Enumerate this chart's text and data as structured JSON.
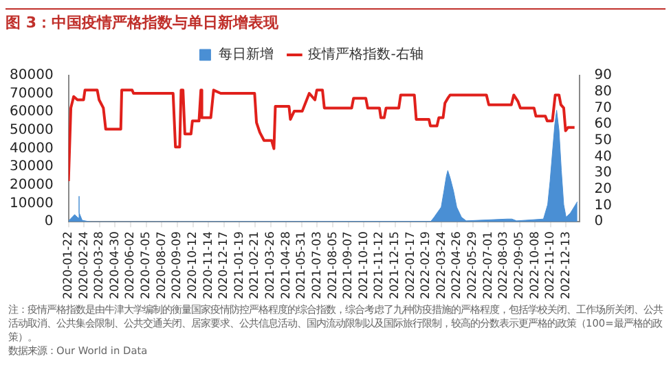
{
  "chart_data": {
    "type": "line",
    "title": "图 3：中国疫情严格指数与单日新增表现",
    "legend": "top",
    "grid": false,
    "xlim": [
      "2020-01-22",
      "2023-01-10"
    ],
    "xticks": [
      "2020-01-22",
      "2020-02-24",
      "2020-03-28",
      "2020-04-30",
      "2020-06-02",
      "2020-07-05",
      "2020-08-07",
      "2020-09-09",
      "2020-10-12",
      "2020-11-14",
      "2020-12-17",
      "2021-01-19",
      "2021-02-21",
      "2021-03-26",
      "2021-04-28",
      "2021-05-31",
      "2021-07-03",
      "2021-08-05",
      "2021-09-07",
      "2021-10-10",
      "2021-11-12",
      "2021-12-15",
      "2022-01-17",
      "2022-02-19",
      "2022-03-24",
      "2022-04-26",
      "2022-05-29",
      "2022-07-01",
      "2022-08-03",
      "2022-09-05",
      "2022-10-08",
      "2022-11-10",
      "2022-12-13"
    ],
    "ylim": [
      0,
      80000
    ],
    "yticks": [
      0,
      10000,
      20000,
      30000,
      40000,
      50000,
      60000,
      70000,
      80000
    ],
    "y2lim": [
      0,
      90
    ],
    "y2ticks": [
      0,
      10,
      20,
      30,
      40,
      50,
      60,
      70,
      80,
      90
    ],
    "series": [
      {
        "name": "每日新增",
        "type": "area",
        "color": "#4a8fd4",
        "x": [
          "2020-01-22",
          "2020-01-28",
          "2020-02-04",
          "2020-02-12",
          "2020-02-13",
          "2020-02-14",
          "2020-02-20",
          "2020-03-01",
          "2020-03-10",
          "2022-03-01",
          "2022-03-08",
          "2022-03-23",
          "2022-03-29",
          "2022-04-03",
          "2022-04-06",
          "2022-04-11",
          "2022-04-18",
          "2022-04-25",
          "2022-05-05",
          "2022-05-15",
          "2022-08-10",
          "2022-08-20",
          "2022-08-30",
          "2022-10-26",
          "2022-11-04",
          "2022-11-09",
          "2022-11-14",
          "2022-11-19",
          "2022-11-23",
          "2022-11-28",
          "2022-12-03",
          "2022-12-08",
          "2022-12-13",
          "2022-12-22",
          "2023-01-06"
        ],
        "values": [
          500,
          2000,
          3900,
          2000,
          14000,
          5000,
          800,
          300,
          0,
          200,
          2500,
          8000,
          17000,
          25000,
          28000,
          24000,
          17000,
          8000,
          2500,
          500,
          1500,
          1500,
          500,
          1500,
          9400,
          22000,
          37600,
          53000,
          61000,
          50000,
          28000,
          9400,
          2500,
          4700,
          11000
        ]
      },
      {
        "name": "疫情严格指数-右轴",
        "type": "line",
        "axis": "y2",
        "color": "#e0201b",
        "x": [
          "2020-01-22",
          "2020-01-27",
          "2020-02-02",
          "2020-02-10",
          "2020-02-23",
          "2020-02-26",
          "2020-03-23",
          "2020-03-27",
          "2020-04-05",
          "2020-04-10",
          "2020-05-12",
          "2020-05-14",
          "2020-06-05",
          "2020-06-08",
          "2020-08-31",
          "2020-09-05",
          "2020-09-14",
          "2020-09-17",
          "2020-09-21",
          "2020-09-25",
          "2020-10-08",
          "2020-10-11",
          "2020-10-25",
          "2020-10-29",
          "2020-10-31",
          "2020-11-19",
          "2020-11-25",
          "2020-12-10",
          "2021-02-20",
          "2021-02-24",
          "2021-03-03",
          "2021-03-12",
          "2021-03-28",
          "2021-04-02",
          "2021-04-05",
          "2021-05-04",
          "2021-05-07",
          "2021-05-15",
          "2021-06-01",
          "2021-06-16",
          "2021-06-28",
          "2021-07-02",
          "2021-07-14",
          "2021-07-18",
          "2021-09-14",
          "2021-09-18",
          "2021-10-14",
          "2021-10-18",
          "2021-11-12",
          "2021-11-15",
          "2021-11-22",
          "2021-11-26",
          "2021-12-23",
          "2021-12-27",
          "2022-01-25",
          "2022-01-29",
          "2022-02-25",
          "2022-02-28",
          "2022-03-14",
          "2022-03-18",
          "2022-03-27",
          "2022-03-31",
          "2022-04-06",
          "2022-04-11",
          "2022-06-27",
          "2022-07-02",
          "2022-08-19",
          "2022-08-24",
          "2022-09-02",
          "2022-09-07",
          "2022-10-06",
          "2022-10-10",
          "2022-10-30",
          "2022-11-03",
          "2022-11-14",
          "2022-11-20",
          "2022-11-28",
          "2022-12-02",
          "2022-12-08",
          "2022-12-12",
          "2022-12-17",
          "2022-12-31"
        ],
        "values": [
          25,
          70,
          77,
          75,
          75,
          81,
          81,
          75,
          70,
          57,
          57,
          81,
          81,
          79,
          79,
          46,
          46,
          81,
          81,
          54,
          54,
          62,
          62,
          81,
          64,
          64,
          81,
          79,
          79,
          61,
          55,
          50,
          50,
          45,
          71,
          71,
          63,
          68,
          68,
          79,
          75,
          81,
          81,
          70,
          70,
          76,
          76,
          70,
          70,
          64,
          64,
          70,
          70,
          78,
          78,
          63,
          63,
          59,
          59,
          64,
          64,
          73,
          76,
          78,
          78,
          72,
          72,
          78,
          74,
          70,
          70,
          65,
          65,
          62,
          62,
          78,
          78,
          72,
          70,
          56,
          58,
          58
        ]
      }
    ],
    "annotations": [
      "注：疫情严格指数是由牛津大学编制的衡量国家疫情防控严格程度的综合指数，综合考虑了九种防疫措施的严格程度，包括学校关闭、工作场所关闭、公共活动取消、公共集会限制、公共交通关闭、居家要求、公共信息活动、国内流动限制以及国际旅行限制，较高的分数表示更严格的政策（100=最严格的政策）。",
      "数据来源：Our World in Data"
    ]
  }
}
